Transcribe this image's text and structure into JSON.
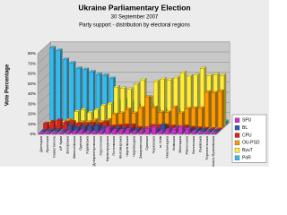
{
  "chart_data": {
    "type": "bar3d",
    "title": "Ukraine Parliamentary Election",
    "subtitle": "30 September 2007",
    "caption": "Party support - distribution by electoral regions",
    "y_label": "Vote Percentage",
    "categories": [
      "Донецька",
      "Луганська",
      "Севастополь",
      "АР Крим",
      "Запорізька",
      "Миколаївська",
      "Одеська",
      "Харківська",
      "Дніпропетровська",
      "Херсонська",
      "Кіровоградська",
      "Полтавська",
      "Житомирська",
      "Чернігівська",
      "Чернівецька",
      "Закарпатська",
      "Сумська",
      "Черкаська",
      "м. Київ",
      "Хмельницька",
      "Київська",
      "Вінницька",
      "Рівненська",
      "Волинська",
      "Львівська",
      "Тернопільська",
      "Івано-Франківська"
    ],
    "series": [
      {
        "name": "SPU",
        "color": "#cc33cc",
        "values": [
          1.1,
          1.3,
          1.1,
          1.1,
          2.4,
          2.5,
          3.3,
          2.3,
          1.7,
          2.6,
          6.3,
          3.8,
          3.6,
          4.5,
          2.3,
          2.6,
          5.7,
          6.7,
          2.4,
          4.3,
          5.1,
          7.2,
          5,
          2.4,
          1.2,
          1.5,
          1
        ]
      },
      {
        "name": "BL",
        "color": "#3355aa",
        "values": [
          1.5,
          1.8,
          2.2,
          1.2,
          6.3,
          4.4,
          5.3,
          5.6,
          6.3,
          4.6,
          3.8,
          4,
          3.7,
          3.5,
          2.5,
          1.7,
          2.7,
          2.6,
          7.1,
          3,
          4.1,
          2.8,
          3.7,
          2.6,
          2.5,
          1.4,
          1.5
        ]
      },
      {
        "name": "CPU",
        "color": "#dd2222",
        "values": [
          6.8,
          8.5,
          10,
          7.6,
          8.3,
          6.3,
          6.2,
          7,
          6.2,
          7.9,
          4,
          4.5,
          5,
          5.1,
          2.5,
          2.1,
          4.5,
          4.5,
          4.7,
          3.9,
          3.3,
          4,
          2.6,
          2.2,
          1.6,
          1.2,
          1
        ]
      },
      {
        "name": "OU-PSD",
        "color": "#ff9900",
        "values": [
          2,
          1.7,
          2.3,
          8.2,
          4.3,
          6.1,
          6.1,
          8.1,
          6.2,
          8.3,
          13.8,
          14.9,
          18.8,
          14.9,
          20.3,
          31.1,
          20.7,
          15.8,
          15.8,
          20.8,
          15.1,
          19.5,
          20,
          20,
          36,
          35.2,
          36.8
        ]
      },
      {
        "name": "ByuT",
        "color": "#ffee33",
        "values": [
          4.5,
          5.1,
          4.2,
          6.9,
          14.7,
          16.6,
          13.6,
          16.4,
          20.8,
          22.4,
          39.1,
          37.9,
          37,
          41.9,
          46.2,
          28.9,
          44.5,
          47,
          46.2,
          48.2,
          53.4,
          50,
          51,
          57.6,
          50.4,
          51.6,
          50.7
        ]
      },
      {
        "name": "PoR",
        "color": "#33bbee",
        "values": [
          76,
          73.5,
          64.5,
          61,
          55.6,
          54.4,
          52.2,
          49.6,
          48.7,
          45.6,
          23.7,
          25.1,
          22.6,
          20.1,
          16.8,
          19.8,
          15.6,
          15.5,
          15,
          14.3,
          13.1,
          12.8,
          10,
          6.7,
          4.2,
          3,
          3
        ]
      }
    ],
    "ylim": [
      0,
      80
    ],
    "yticks": [
      {
        "value": 0,
        "label": "0%"
      },
      {
        "value": 10,
        "label": "10%"
      },
      {
        "value": 20,
        "label": "20%"
      },
      {
        "value": 30,
        "label": "30%"
      },
      {
        "value": 40,
        "label": "40%"
      },
      {
        "value": 50,
        "label": "50%"
      },
      {
        "value": 60,
        "label": "60%"
      },
      {
        "value": 70,
        "label": "70%"
      },
      {
        "value": 80,
        "label": "80%"
      }
    ],
    "grid": true
  }
}
